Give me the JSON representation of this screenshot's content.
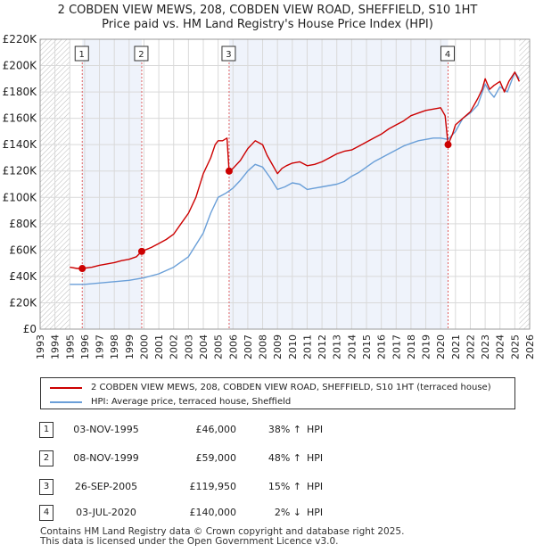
{
  "chart_data": {
    "type": "line",
    "title": "2 COBDEN VIEW MEWS, 208, COBDEN VIEW ROAD, SHEFFIELD, S10 1HT",
    "subtitle": "Price paid vs. HM Land Registry's House Price Index (HPI)",
    "xlabel": "",
    "ylabel": "",
    "xlim": [
      1993,
      2026
    ],
    "ylim": [
      0,
      220000
    ],
    "y_ticks": [
      0,
      20000,
      40000,
      60000,
      80000,
      100000,
      120000,
      140000,
      160000,
      180000,
      200000,
      220000
    ],
    "y_tick_labels": [
      "£0",
      "£20K",
      "£40K",
      "£60K",
      "£80K",
      "£100K",
      "£120K",
      "£140K",
      "£160K",
      "£180K",
      "£200K",
      "£220K"
    ],
    "x_ticks": [
      1993,
      1994,
      1995,
      1996,
      1997,
      1998,
      1999,
      2000,
      2001,
      2002,
      2003,
      2004,
      2005,
      2006,
      2007,
      2008,
      2009,
      2010,
      2011,
      2012,
      2013,
      2014,
      2015,
      2016,
      2017,
      2018,
      2019,
      2020,
      2021,
      2022,
      2023,
      2024,
      2025,
      2026
    ],
    "x_tick_labels": [
      "1993",
      "1994",
      "1995",
      "1996",
      "1997",
      "1998",
      "1999",
      "2000",
      "2001",
      "2002",
      "2003",
      "2004",
      "2005",
      "2006",
      "2007",
      "2008",
      "2009",
      "2010",
      "2011",
      "2012",
      "2013",
      "2014",
      "2015",
      "2016",
      "2017",
      "2018",
      "2019",
      "2020",
      "2021",
      "2022",
      "2023",
      "2024",
      "2025",
      "2026"
    ],
    "grid": true,
    "data_range": [
      1995.0,
      2025.3
    ],
    "series": [
      {
        "name": "2 COBDEN VIEW MEWS, 208, COBDEN VIEW ROAD, SHEFFIELD, S10 1HT (terraced house)",
        "color": "#cc0000",
        "x": [
          1995.0,
          1995.5,
          1995.84,
          1996.5,
          1997.0,
          1997.5,
          1998.0,
          1998.5,
          1999.0,
          1999.5,
          1999.85,
          2000.5,
          2001.0,
          2001.5,
          2002.0,
          2002.5,
          2003.0,
          2003.5,
          2004.0,
          2004.5,
          2004.8,
          2005.0,
          2005.3,
          2005.6,
          2005.74,
          2006.0,
          2006.5,
          2007.0,
          2007.5,
          2008.0,
          2008.3,
          2008.6,
          2009.0,
          2009.3,
          2009.6,
          2010.0,
          2010.5,
          2011.0,
          2011.5,
          2012.0,
          2012.5,
          2013.0,
          2013.5,
          2014.0,
          2014.5,
          2015.0,
          2015.5,
          2016.0,
          2016.5,
          2017.0,
          2017.5,
          2018.0,
          2018.5,
          2019.0,
          2019.5,
          2020.0,
          2020.3,
          2020.5,
          2020.8,
          2021.0,
          2021.5,
          2022.0,
          2022.5,
          2022.8,
          2023.0,
          2023.3,
          2023.6,
          2024.0,
          2024.3,
          2024.6,
          2025.0,
          2025.3
        ],
        "values": [
          47000,
          46000,
          46000,
          47000,
          48500,
          49500,
          50500,
          52000,
          53000,
          55000,
          59000,
          62000,
          65000,
          68000,
          72000,
          80000,
          88000,
          100000,
          118000,
          130000,
          140000,
          143000,
          143000,
          145000,
          119950,
          122000,
          128000,
          137000,
          143000,
          140000,
          132000,
          126000,
          118000,
          122000,
          124000,
          126000,
          127000,
          124000,
          125000,
          127000,
          130000,
          133000,
          135000,
          136000,
          139000,
          142000,
          145000,
          148000,
          152000,
          155000,
          158000,
          162000,
          164000,
          166000,
          167000,
          168000,
          162000,
          140000,
          148000,
          155000,
          160000,
          165000,
          175000,
          182000,
          190000,
          182000,
          185000,
          188000,
          180000,
          188000,
          195000,
          188000
        ]
      },
      {
        "name": "HPI: Average price, terraced house, Sheffield",
        "color": "#6a9fd8",
        "x": [
          1995.0,
          1996.0,
          1997.0,
          1998.0,
          1999.0,
          2000.0,
          2001.0,
          2002.0,
          2003.0,
          2004.0,
          2004.5,
          2005.0,
          2005.5,
          2006.0,
          2006.5,
          2007.0,
          2007.5,
          2008.0,
          2008.5,
          2009.0,
          2009.5,
          2010.0,
          2010.5,
          2011.0,
          2011.5,
          2012.0,
          2012.5,
          2013.0,
          2013.5,
          2014.0,
          2014.5,
          2015.0,
          2015.5,
          2016.0,
          2016.5,
          2017.0,
          2017.5,
          2018.0,
          2018.5,
          2019.0,
          2019.5,
          2020.0,
          2020.5,
          2021.0,
          2021.5,
          2022.0,
          2022.5,
          2023.0,
          2023.3,
          2023.6,
          2024.0,
          2024.5,
          2025.0,
          2025.3
        ],
        "values": [
          34000,
          34000,
          35000,
          36000,
          37000,
          39000,
          42000,
          47000,
          55000,
          73000,
          88000,
          100000,
          103000,
          107000,
          113000,
          120000,
          125000,
          123000,
          115000,
          106000,
          108000,
          111000,
          110000,
          106000,
          107000,
          108000,
          109000,
          110000,
          112000,
          116000,
          119000,
          123000,
          127000,
          130000,
          133000,
          136000,
          139000,
          141000,
          143000,
          144000,
          145000,
          145000,
          144000,
          150000,
          160000,
          164000,
          170000,
          186000,
          180000,
          176000,
          184000,
          180000,
          195000,
          190000
        ]
      }
    ],
    "annotations": [
      {
        "label": "1",
        "x": 1995.84,
        "value": 46000
      },
      {
        "label": "2",
        "x": 1999.85,
        "value": 59000
      },
      {
        "label": "3",
        "x": 2005.74,
        "value": 119950
      },
      {
        "label": "4",
        "x": 2020.5,
        "value": 140000
      }
    ]
  },
  "legend": {
    "property_label": "2 COBDEN VIEW MEWS, 208, COBDEN VIEW ROAD, SHEFFIELD, S10 1HT (terraced house)",
    "hpi_label": "HPI: Average price, terraced house, Sheffield",
    "property_color": "#cc0000",
    "hpi_color": "#6a9fd8"
  },
  "transactions": [
    {
      "marker": "1",
      "date": "03-NOV-1995",
      "price": "£46,000",
      "pct": "38% ↑",
      "hpi": "HPI"
    },
    {
      "marker": "2",
      "date": "08-NOV-1999",
      "price": "£59,000",
      "pct": "48% ↑",
      "hpi": "HPI"
    },
    {
      "marker": "3",
      "date": "26-SEP-2005",
      "price": "£119,950",
      "pct": "15% ↑",
      "hpi": "HPI"
    },
    {
      "marker": "4",
      "date": "03-JUL-2020",
      "price": "£140,000",
      "pct": "2% ↓",
      "hpi": "HPI"
    }
  ],
  "footer": {
    "line1": "Contains HM Land Registry data © Crown copyright and database right 2025.",
    "line2": "This data is licensed under the Open Government Licence v3.0."
  }
}
